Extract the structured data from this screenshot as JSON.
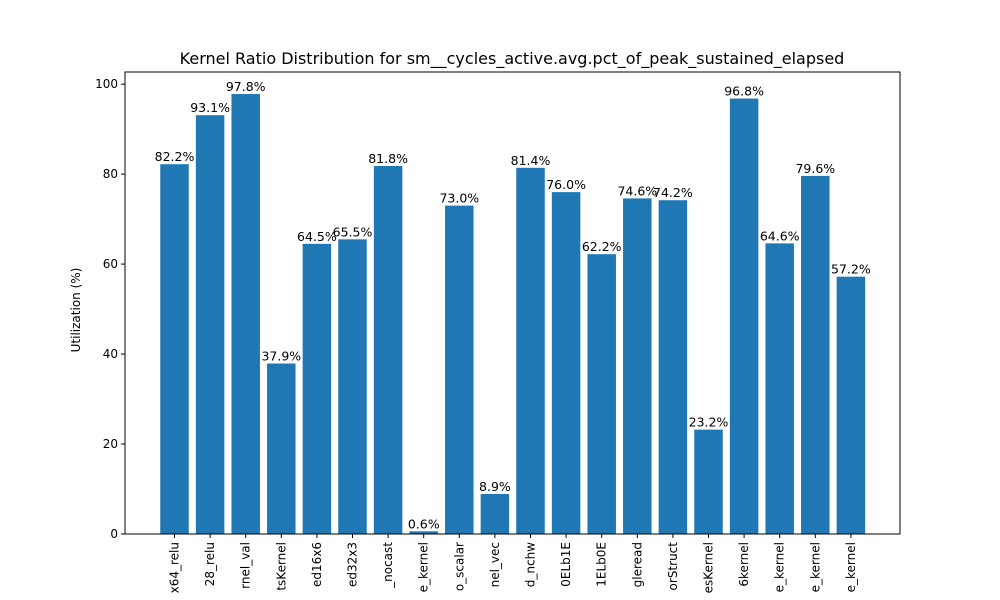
{
  "chart_data": {
    "type": "bar",
    "title": "Kernel Ratio Distribution for sm__cycles_active.avg.pct_of_peak_sustained_elapsed",
    "xlabel": "",
    "ylabel": "Utilization (%)",
    "ylim": [
      0,
      102.7
    ],
    "yticks": [
      0,
      20,
      40,
      60,
      80,
      100
    ],
    "bar_color": "#1f77b4",
    "grid": false,
    "categories": [
      "x64_relu",
      "28_relu",
      "rnel_val",
      "tsKernel",
      "ed16x6",
      "ed32x3",
      "_nocast",
      "e_kernel",
      "o_scalar",
      "nel_vec",
      "d_nchw",
      "0ELb1E",
      "1ELb0E",
      "gleread",
      "orStruct",
      "esKernel",
      "6kernel",
      "e_kernel",
      "e_kernel",
      "e_kernel"
    ],
    "values": [
      82.2,
      93.1,
      97.8,
      37.9,
      64.5,
      65.5,
      81.8,
      0.6,
      73.0,
      8.9,
      81.4,
      76.0,
      62.2,
      74.6,
      74.2,
      23.2,
      96.8,
      64.6,
      79.6,
      57.2
    ],
    "value_labels": [
      "82.2%",
      "93.1%",
      "97.8%",
      "37.9%",
      "64.5%",
      "65.5%",
      "81.8%",
      "0.6%",
      "73.0%",
      "8.9%",
      "81.4%",
      "76.0%",
      "62.2%",
      "74.6%",
      "74.2%",
      "23.2%",
      "96.8%",
      "64.6%",
      "79.6%",
      "57.2%"
    ]
  }
}
